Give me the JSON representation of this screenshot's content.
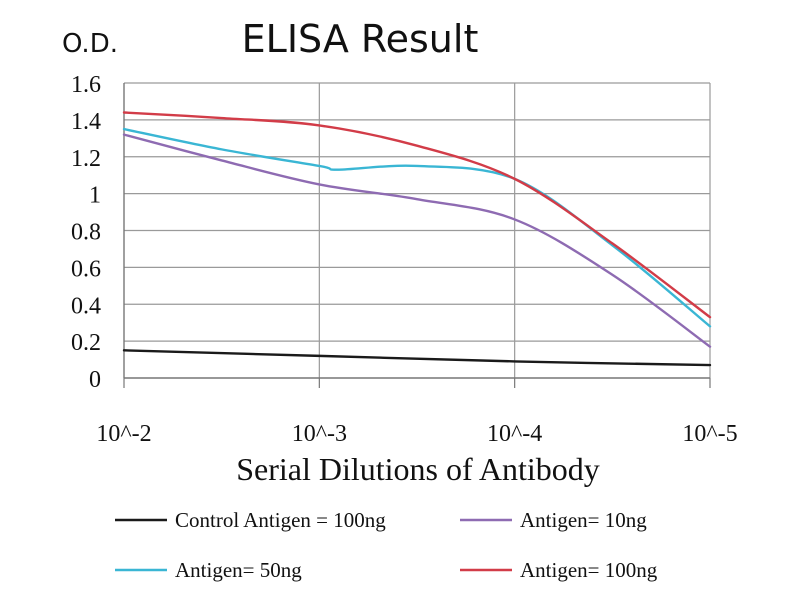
{
  "chart_data": {
    "type": "line",
    "title": "ELISA Result",
    "ylabel": "O.D.",
    "xlabel": "Serial Dilutions of Antibody",
    "x_ticks": [
      "10^-2",
      "10^-3",
      "10^-4",
      "10^-5"
    ],
    "y_ticks": [
      "0",
      "0.2",
      "0.4",
      "0.6",
      "0.8",
      "1",
      "1.2",
      "1.4",
      "1.6"
    ],
    "ylim": [
      0,
      1.6
    ],
    "xlim": [
      0,
      3
    ],
    "x_scale": "log dilution (decades)",
    "grid": true,
    "legend_position": "bottom",
    "series": [
      {
        "name": "Control Antigen = 100ng",
        "color": "#1a1a1a",
        "points": [
          [
            0,
            0.15
          ],
          [
            1,
            0.12
          ],
          [
            2,
            0.09
          ],
          [
            3,
            0.07
          ]
        ]
      },
      {
        "name": "Antigen= 10ng",
        "color": "#8e6bb2",
        "points": [
          [
            0,
            1.32
          ],
          [
            0.5,
            1.18
          ],
          [
            1,
            1.05
          ],
          [
            1.5,
            0.97
          ],
          [
            2,
            0.86
          ],
          [
            2.5,
            0.56
          ],
          [
            3,
            0.17
          ]
        ]
      },
      {
        "name": "Antigen= 50ng",
        "color": "#3ab6d4",
        "points": [
          [
            0,
            1.35
          ],
          [
            0.5,
            1.24
          ],
          [
            1,
            1.15
          ],
          [
            1.1,
            1.13
          ],
          [
            1.5,
            1.15
          ],
          [
            2,
            1.08
          ],
          [
            2.5,
            0.72
          ],
          [
            3,
            0.28
          ]
        ]
      },
      {
        "name": "Antigen= 100ng",
        "color": "#d23c48",
        "points": [
          [
            0,
            1.44
          ],
          [
            0.5,
            1.41
          ],
          [
            1,
            1.37
          ],
          [
            1.5,
            1.26
          ],
          [
            2,
            1.08
          ],
          [
            2.5,
            0.73
          ],
          [
            3,
            0.33
          ]
        ]
      }
    ]
  }
}
